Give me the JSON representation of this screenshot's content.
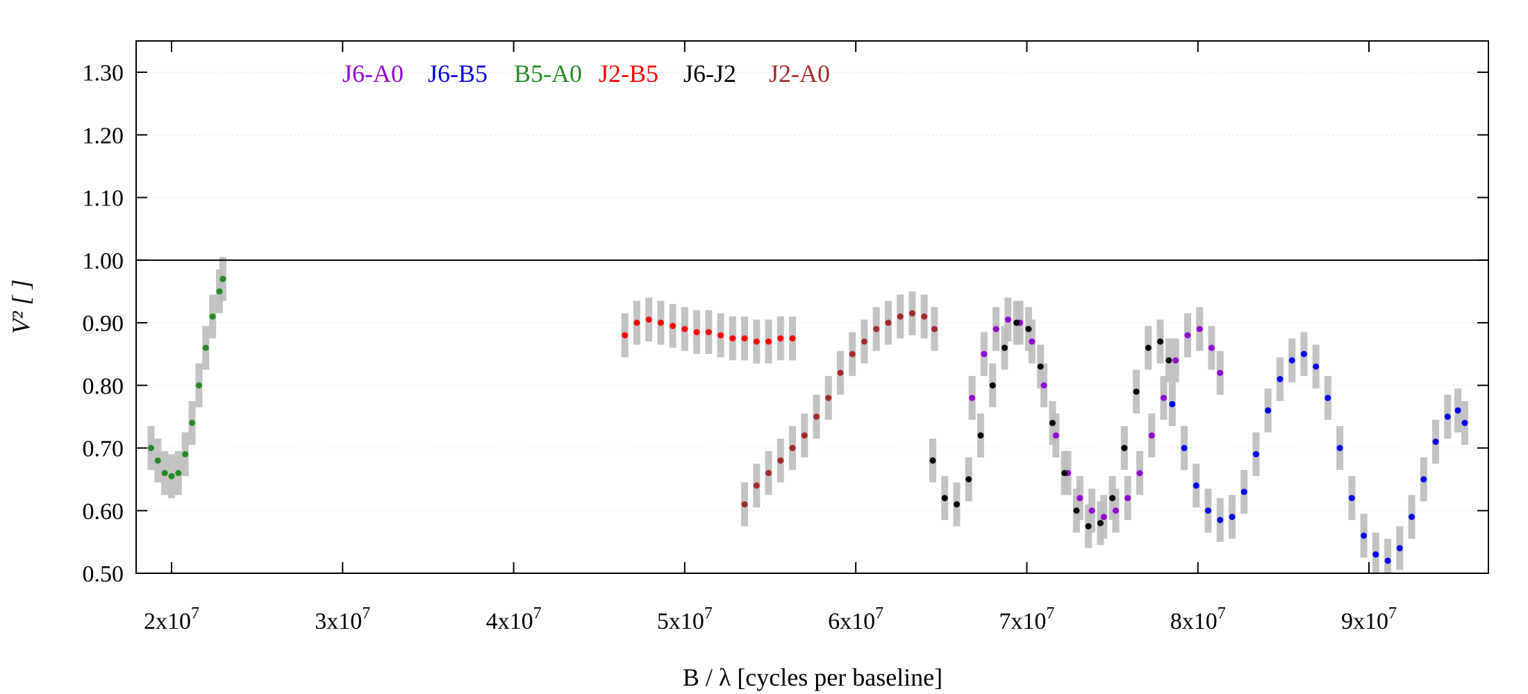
{
  "chart_data": {
    "type": "scatter",
    "title": "",
    "xlabel": "B / λ [cycles per baseline]",
    "ylabel": "V² [ ]",
    "xlim": [
      18000000,
      97000000
    ],
    "ylim": [
      0.5,
      1.35
    ],
    "x_ticks": [
      {
        "value": 20000000,
        "mantissa": "2x10",
        "exp": "7"
      },
      {
        "value": 30000000,
        "mantissa": "3x10",
        "exp": "7"
      },
      {
        "value": 40000000,
        "mantissa": "4x10",
        "exp": "7"
      },
      {
        "value": 50000000,
        "mantissa": "5x10",
        "exp": "7"
      },
      {
        "value": 60000000,
        "mantissa": "6x10",
        "exp": "7"
      },
      {
        "value": 70000000,
        "mantissa": "7x10",
        "exp": "7"
      },
      {
        "value": 80000000,
        "mantissa": "8x10",
        "exp": "7"
      },
      {
        "value": 90000000,
        "mantissa": "9x10",
        "exp": "7"
      }
    ],
    "y_ticks": [
      {
        "value": 0.5,
        "label": "0.50"
      },
      {
        "value": 0.6,
        "label": "0.60"
      },
      {
        "value": 0.7,
        "label": "0.70"
      },
      {
        "value": 0.8,
        "label": "0.80"
      },
      {
        "value": 0.9,
        "label": "0.90"
      },
      {
        "value": 1.0,
        "label": "1.00"
      },
      {
        "value": 1.1,
        "label": "1.10"
      },
      {
        "value": 1.2,
        "label": "1.20"
      },
      {
        "value": 1.3,
        "label": "1.30"
      }
    ],
    "reference_line_y": 1.0,
    "grid": true,
    "legend_position": "top-left",
    "error_bar_color": "#bdbdbd",
    "series": [
      {
        "name": "J6-A0",
        "color": "#9400d3",
        "x": [
          66800000,
          67500000,
          68200000,
          68900000,
          69600000,
          70300000,
          71000000,
          71700000,
          72400000,
          73100000,
          73800000,
          74500000,
          75200000,
          75900000,
          76600000,
          77300000,
          78000000,
          78700000,
          79400000,
          80100000,
          80800000,
          81300000
        ],
        "y": [
          0.78,
          0.85,
          0.89,
          0.905,
          0.9,
          0.87,
          0.8,
          0.72,
          0.66,
          0.62,
          0.6,
          0.59,
          0.6,
          0.62,
          0.66,
          0.72,
          0.78,
          0.84,
          0.88,
          0.89,
          0.86,
          0.82
        ]
      },
      {
        "name": "J6-B5",
        "color": "#0000ee",
        "x": [
          78500000,
          79200000,
          79900000,
          80600000,
          81300000,
          82000000,
          82700000,
          83400000,
          84100000,
          84800000,
          85500000,
          86200000,
          86900000,
          87600000,
          88300000,
          89000000,
          89700000,
          90400000,
          91100000,
          91800000,
          92500000,
          93200000,
          93900000,
          94600000,
          95200000,
          95600000
        ],
        "y": [
          0.77,
          0.7,
          0.64,
          0.6,
          0.585,
          0.59,
          0.63,
          0.69,
          0.76,
          0.81,
          0.84,
          0.85,
          0.83,
          0.78,
          0.7,
          0.62,
          0.56,
          0.53,
          0.52,
          0.54,
          0.59,
          0.65,
          0.71,
          0.75,
          0.76,
          0.74
        ]
      },
      {
        "name": "B5-A0",
        "color": "#228b22",
        "x": [
          18800000,
          19200000,
          19600000,
          20000000,
          20400000,
          20800000,
          21200000,
          21600000,
          22000000,
          22400000,
          22800000,
          23000000
        ],
        "y": [
          0.7,
          0.68,
          0.66,
          0.655,
          0.66,
          0.69,
          0.74,
          0.8,
          0.86,
          0.91,
          0.95,
          0.97
        ]
      },
      {
        "name": "J2-B5",
        "color": "#ff0000",
        "x": [
          46500000,
          47200000,
          47900000,
          48600000,
          49300000,
          50000000,
          50700000,
          51400000,
          52100000,
          52800000,
          53500000,
          54200000,
          54900000,
          55600000,
          56300000
        ],
        "y": [
          0.88,
          0.9,
          0.905,
          0.9,
          0.895,
          0.89,
          0.885,
          0.885,
          0.88,
          0.875,
          0.875,
          0.87,
          0.87,
          0.875,
          0.875
        ]
      },
      {
        "name": "J6-J2",
        "color": "#000000",
        "x": [
          64500000,
          65200000,
          65900000,
          66600000,
          67300000,
          68000000,
          68700000,
          69400000,
          70100000,
          70800000,
          71500000,
          72200000,
          72900000,
          73600000,
          74300000,
          75000000,
          75700000,
          76400000,
          77100000,
          77800000,
          78300000
        ],
        "y": [
          0.68,
          0.62,
          0.61,
          0.65,
          0.72,
          0.8,
          0.86,
          0.9,
          0.89,
          0.83,
          0.74,
          0.66,
          0.6,
          0.575,
          0.58,
          0.62,
          0.7,
          0.79,
          0.86,
          0.87,
          0.84
        ]
      },
      {
        "name": "J2-A0",
        "color": "#a52a2a",
        "x": [
          53500000,
          54200000,
          54900000,
          55600000,
          56300000,
          57000000,
          57700000,
          58400000,
          59100000,
          59800000,
          60500000,
          61200000,
          61900000,
          62600000,
          63300000,
          64000000,
          64600000
        ],
        "y": [
          0.61,
          0.64,
          0.66,
          0.68,
          0.7,
          0.72,
          0.75,
          0.78,
          0.82,
          0.85,
          0.87,
          0.89,
          0.9,
          0.91,
          0.915,
          0.91,
          0.89
        ]
      }
    ]
  }
}
